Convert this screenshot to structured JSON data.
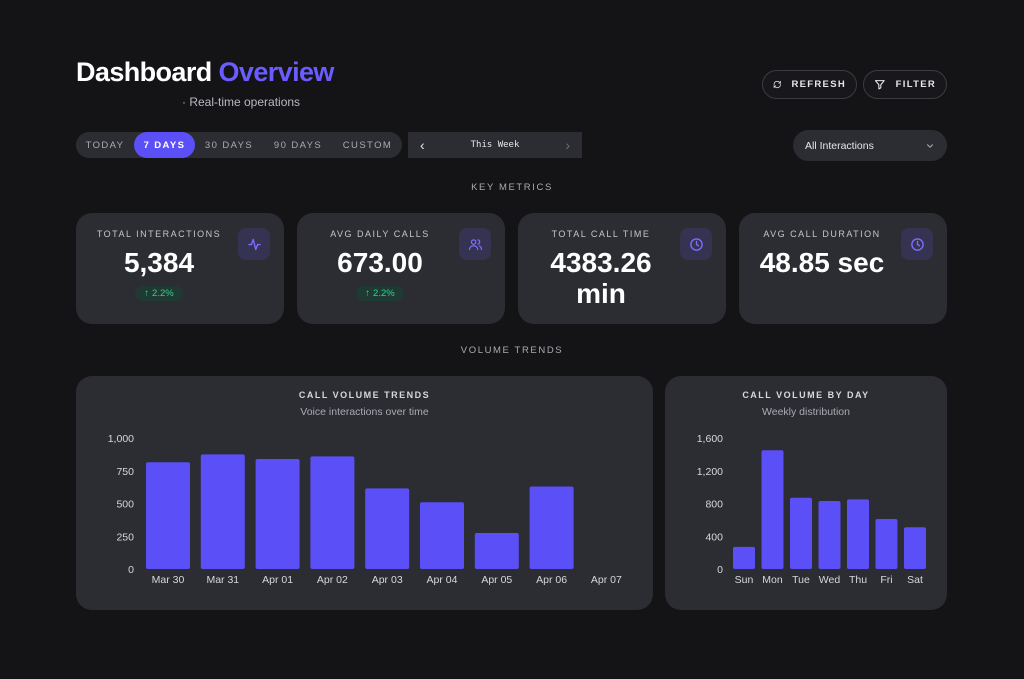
{
  "header": {
    "title_main": "Dashboard",
    "title_accent": "Overview",
    "subtitle": "· Real-time operations",
    "refresh_label": "REFRESH",
    "filter_label": "FILTER",
    "refresh_icon": "refresh-icon",
    "filter_icon": "filter-icon"
  },
  "range_tabs": [
    {
      "label": "TODAY",
      "active": false
    },
    {
      "label": "7 DAYS",
      "active": true
    },
    {
      "label": "30 DAYS",
      "active": false
    },
    {
      "label": "90 DAYS",
      "active": false
    },
    {
      "label": "CUSTOM",
      "active": false
    }
  ],
  "week_nav": {
    "label": "This Week",
    "prev": "‹",
    "next": "›"
  },
  "interaction_filter": {
    "selected": "All Interactions"
  },
  "sections": {
    "metrics": "KEY METRICS",
    "trends": "VOLUME TRENDS"
  },
  "metrics": [
    {
      "label": "TOTAL INTERACTIONS",
      "value": "5,384",
      "change": "2.2%",
      "icon": "activity-icon"
    },
    {
      "label": "AVG DAILY CALLS",
      "value": "673.00",
      "change": "2.2%",
      "icon": "users-icon"
    },
    {
      "label": "TOTAL CALL TIME",
      "value": "4383.26 min",
      "value_line1": "4383.26",
      "value_line2": "min",
      "icon": "clock-icon"
    },
    {
      "label": "AVG CALL DURATION",
      "value": "48.85 sec",
      "icon": "clock-icon"
    }
  ],
  "colors": {
    "accent": "#5b4ff7",
    "title_accent": "#6a5cff",
    "positive": "#35d08a",
    "card": "#2b2d32",
    "background": "#141417"
  },
  "chart_data": [
    {
      "type": "bar",
      "title": "CALL VOLUME TRENDS",
      "subtitle": "Voice interactions over time",
      "categories": [
        "Mar 30",
        "Mar 31",
        "Apr 01",
        "Apr 02",
        "Apr 03",
        "Apr 04",
        "Apr 05",
        "Apr 06",
        "Apr 07"
      ],
      "values": [
        815,
        875,
        840,
        860,
        615,
        510,
        275,
        630,
        0
      ],
      "yticks": [
        "0",
        "250",
        "500",
        "750",
        "1,000"
      ],
      "ylim": [
        0,
        1000
      ],
      "grid": false,
      "xlabel": "",
      "ylabel": ""
    },
    {
      "type": "bar",
      "title": "CALL VOLUME BY DAY",
      "subtitle": "Weekly distribution",
      "categories": [
        "Sun",
        "Mon",
        "Tue",
        "Wed",
        "Thu",
        "Fri",
        "Sat"
      ],
      "values": [
        270,
        1450,
        870,
        830,
        850,
        610,
        510
      ],
      "yticks": [
        "0",
        "400",
        "800",
        "1,200",
        "1,600"
      ],
      "ylim": [
        0,
        1600
      ],
      "grid": false,
      "xlabel": "",
      "ylabel": ""
    }
  ]
}
